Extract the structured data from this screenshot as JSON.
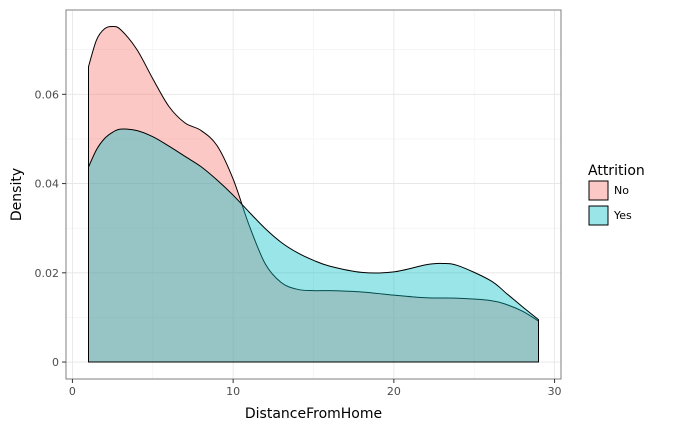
{
  "chart_data": {
    "type": "area",
    "title": "",
    "xlabel": "DistanceFromHome",
    "ylabel": "Density",
    "xlim": [
      -0.4,
      30.4
    ],
    "ylim": [
      -0.0038,
      0.0789
    ],
    "x_ticks": [
      0,
      10,
      20,
      30
    ],
    "y_ticks": [
      0,
      0.02,
      0.04,
      0.06
    ],
    "x_tick_labels": [
      "0",
      "10",
      "20",
      "30"
    ],
    "y_tick_labels": [
      "0",
      "0.02",
      "0.04",
      "0.06"
    ],
    "grid": true,
    "legend": {
      "title": "Attrition",
      "position": "right"
    },
    "series": [
      {
        "name": "No",
        "color": "#F8766D",
        "x": [
          1,
          1.5,
          2,
          2.5,
          3,
          4,
          5,
          6,
          7,
          8,
          9,
          10,
          11,
          12,
          13,
          14,
          15,
          16,
          18,
          20,
          22,
          24,
          26,
          27,
          28,
          29
        ],
        "y": [
          0.0662,
          0.0722,
          0.0747,
          0.0752,
          0.0745,
          0.0701,
          0.0635,
          0.0573,
          0.0536,
          0.0519,
          0.0485,
          0.041,
          0.0306,
          0.022,
          0.0178,
          0.0163,
          0.016,
          0.016,
          0.0157,
          0.015,
          0.0144,
          0.0143,
          0.0138,
          0.0129,
          0.0114,
          0.0092
        ]
      },
      {
        "name": "Yes",
        "color": "#00BFC4",
        "x": [
          1,
          1.5,
          2,
          2.5,
          3,
          4,
          5,
          6,
          7,
          8,
          9,
          10,
          11,
          12,
          13,
          14,
          15,
          16,
          18,
          20,
          22,
          23,
          24,
          26,
          27,
          28,
          29
        ],
        "y": [
          0.0437,
          0.0476,
          0.0501,
          0.0515,
          0.0522,
          0.0519,
          0.0505,
          0.0484,
          0.0461,
          0.0438,
          0.0408,
          0.0374,
          0.0336,
          0.0299,
          0.0268,
          0.0245,
          0.0228,
          0.0215,
          0.0201,
          0.0202,
          0.0218,
          0.0221,
          0.0216,
          0.0183,
          0.0154,
          0.0124,
          0.0095
        ]
      }
    ]
  }
}
